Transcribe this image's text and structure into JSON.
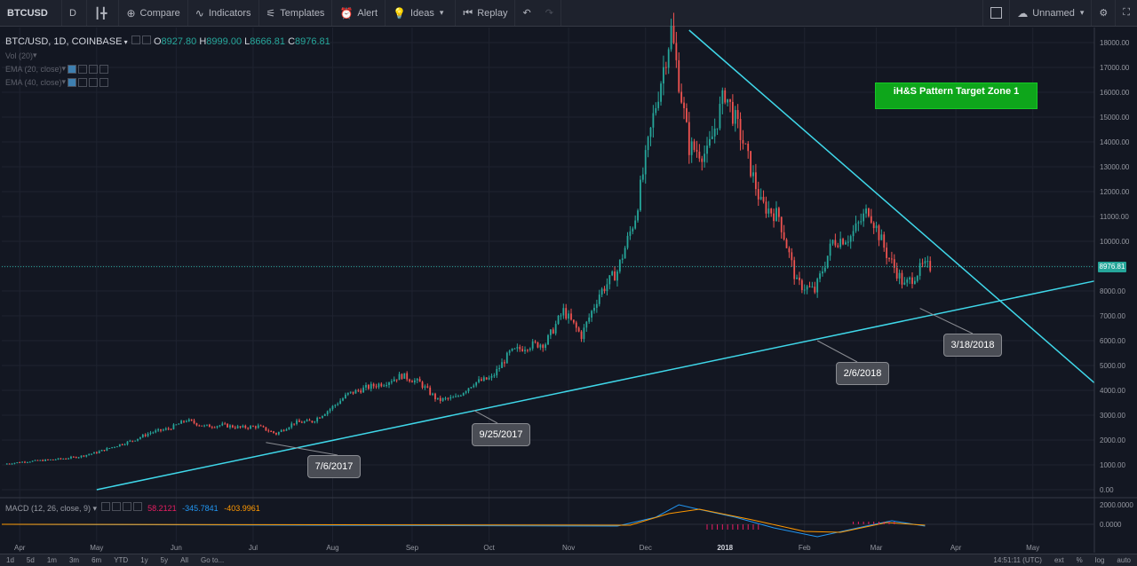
{
  "toolbar": {
    "symbol": "BTCUSD",
    "interval": "D",
    "compare": "Compare",
    "indicators": "Indicators",
    "templates": "Templates",
    "alert": "Alert",
    "ideas": "Ideas",
    "replay": "Replay",
    "layout_name": "Unnamed"
  },
  "legend": {
    "title": "BTC/USD, 1D, COINBASE",
    "open_label": "O",
    "open": "8927.80",
    "high_label": "H",
    "high": "8999.00",
    "low_label": "L",
    "low": "8666.81",
    "close_label": "C",
    "close": "8976.81",
    "indicators": [
      "Vol (20)",
      "EMA (20, close)",
      "EMA (40, close)"
    ]
  },
  "macd_legend": {
    "label": "MACD (12, 26, close, 9)",
    "v1": "58.2121",
    "v2": "-345.7841",
    "v3": "-403.9961",
    "c1": "#e91e63",
    "c2": "#2196f3",
    "c3": "#ff9800"
  },
  "price_axis": [
    "18000.00",
    "17000.00",
    "16000.00",
    "15000.00",
    "14000.00",
    "13000.00",
    "12000.00",
    "11000.00",
    "10000.00",
    "9000.00",
    "8000.00",
    "7000.00",
    "6000.00",
    "5000.00",
    "4000.00",
    "3000.00",
    "2000.00",
    "1000.00",
    "0.00"
  ],
  "macd_axis": [
    "2000.0000",
    "0.0000"
  ],
  "current_price": "8976.81",
  "time_axis": [
    "Apr",
    "May",
    "Jun",
    "Jul",
    "Aug",
    "Sep",
    "Oct",
    "Nov",
    "Dec",
    "2018",
    "Feb",
    "Mar",
    "Apr",
    "May"
  ],
  "annotations": {
    "target_zone": "iH&S Pattern Target Zone 1",
    "callouts": [
      "7/6/2017",
      "9/25/2017",
      "2/6/2018",
      "3/18/2018"
    ]
  },
  "bottom": {
    "ranges": [
      "1d",
      "5d",
      "1m",
      "3m",
      "6m",
      "YTD",
      "1y",
      "5y",
      "All",
      "Go to..."
    ],
    "clock": "14:51:11 (UTC)",
    "ext": "ext",
    "pct": "%",
    "log": "log",
    "auto": "auto"
  },
  "colors": {
    "background": "#131722",
    "up": "#26a69a",
    "down": "#ef5350",
    "trendline": "#3fd7e9",
    "target_box": "#0ea61b"
  },
  "chart_data": {
    "type": "candlestick",
    "symbol": "BTC/USD",
    "interval": "1D",
    "exchange": "COINBASE",
    "ylim": [
      0,
      18500
    ],
    "x_range": [
      "2017-03-25",
      "2018-05-25"
    ],
    "weekly_close": [
      [
        "2017-03-27",
        1050
      ],
      [
        "2017-04-03",
        1130
      ],
      [
        "2017-04-10",
        1180
      ],
      [
        "2017-04-17",
        1240
      ],
      [
        "2017-04-24",
        1330
      ],
      [
        "2017-05-01",
        1500
      ],
      [
        "2017-05-08",
        1750
      ],
      [
        "2017-05-15",
        1980
      ],
      [
        "2017-05-22",
        2300
      ],
      [
        "2017-05-29",
        2450
      ],
      [
        "2017-06-05",
        2800
      ],
      [
        "2017-06-12",
        2550
      ],
      [
        "2017-06-19",
        2600
      ],
      [
        "2017-06-26",
        2500
      ],
      [
        "2017-07-03",
        2550
      ],
      [
        "2017-07-10",
        2250
      ],
      [
        "2017-07-17",
        2700
      ],
      [
        "2017-07-24",
        2750
      ],
      [
        "2017-07-31",
        3250
      ],
      [
        "2017-08-07",
        3850
      ],
      [
        "2017-08-14",
        4100
      ],
      [
        "2017-08-21",
        4300
      ],
      [
        "2017-08-28",
        4600
      ],
      [
        "2017-09-04",
        4300
      ],
      [
        "2017-09-11",
        3600
      ],
      [
        "2017-09-18",
        3700
      ],
      [
        "2017-09-25",
        4300
      ],
      [
        "2017-10-02",
        4500
      ],
      [
        "2017-10-09",
        5500
      ],
      [
        "2017-10-16",
        5800
      ],
      [
        "2017-10-23",
        5900
      ],
      [
        "2017-10-30",
        7200
      ],
      [
        "2017-11-06",
        6200
      ],
      [
        "2017-11-13",
        7900
      ],
      [
        "2017-11-20",
        8800
      ],
      [
        "2017-11-27",
        11000
      ],
      [
        "2017-12-04",
        15000
      ],
      [
        "2017-12-11",
        18500
      ],
      [
        "2017-12-18",
        13800
      ],
      [
        "2017-12-25",
        13500
      ],
      [
        "2018-01-01",
        16000
      ],
      [
        "2018-01-08",
        14000
      ],
      [
        "2018-01-15",
        11500
      ],
      [
        "2018-01-22",
        11000
      ],
      [
        "2018-01-29",
        8300
      ],
      [
        "2018-02-05",
        8000
      ],
      [
        "2018-02-12",
        10000
      ],
      [
        "2018-02-19",
        10200
      ],
      [
        "2018-02-26",
        11300
      ],
      [
        "2018-03-05",
        9500
      ],
      [
        "2018-03-12",
        8200
      ],
      [
        "2018-03-19",
        8977
      ]
    ],
    "trendlines": [
      {
        "name": "support",
        "points": [
          [
            "2017-05-01",
            0
          ],
          [
            "2018-05-25",
            8400
          ]
        ]
      },
      {
        "name": "resistance",
        "points": [
          [
            "2017-12-18",
            18500
          ],
          [
            "2018-05-25",
            4300
          ]
        ]
      }
    ],
    "last": {
      "open": 8927.8,
      "high": 8999.0,
      "low": 8666.81,
      "close": 8976.81
    }
  }
}
